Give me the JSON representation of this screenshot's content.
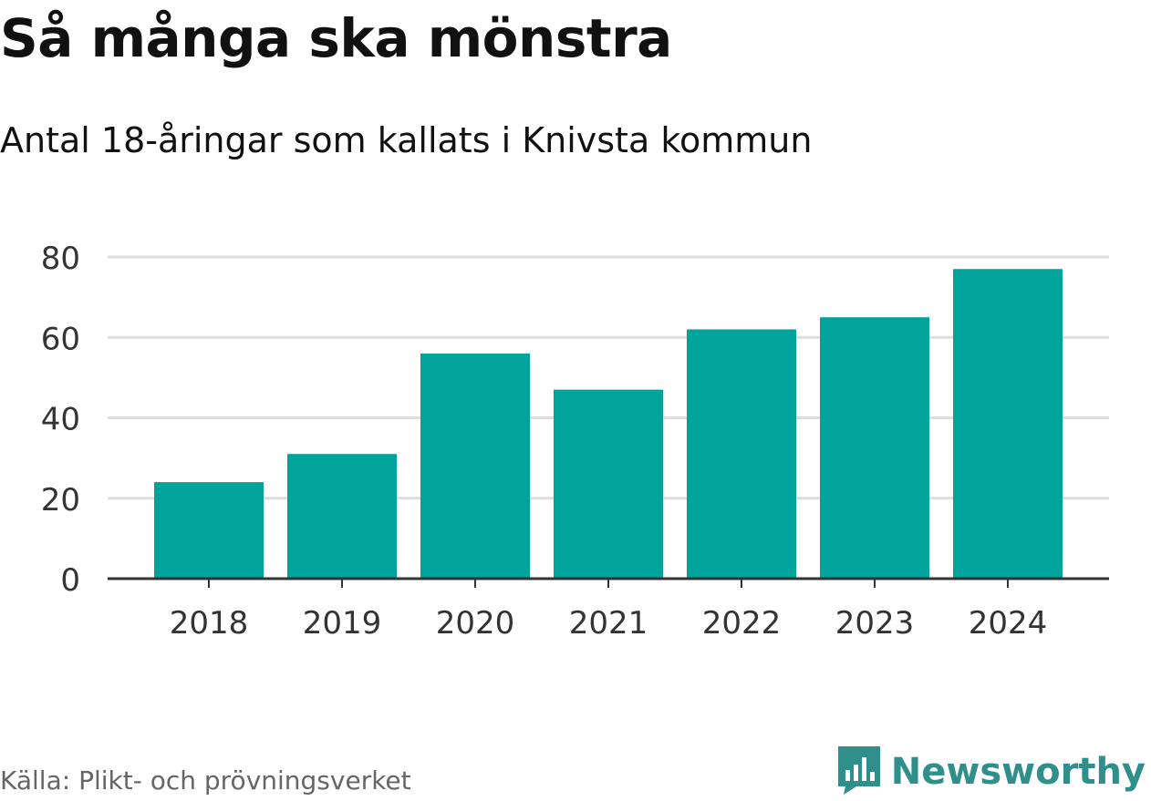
{
  "title": "Så många ska mönstra",
  "subtitle": "Antal 18-åringar som kallats i Knivsta kommun",
  "source": "Källa: Plikt- och prövningsverket",
  "brand": "Newsworthy",
  "colors": {
    "bar": "#00a49a",
    "grid": "#dddddd",
    "axis": "#333333",
    "brand": "#2f8f8a"
  },
  "chart_data": {
    "type": "bar",
    "categories": [
      "2018",
      "2019",
      "2020",
      "2021",
      "2022",
      "2023",
      "2024"
    ],
    "values": [
      24,
      31,
      56,
      47,
      62,
      65,
      77
    ],
    "ylim": [
      0,
      80
    ],
    "yticks": [
      0,
      20,
      40,
      60,
      80
    ],
    "title": "Så många ska mönstra",
    "xlabel": "",
    "ylabel": "",
    "grid": true
  }
}
